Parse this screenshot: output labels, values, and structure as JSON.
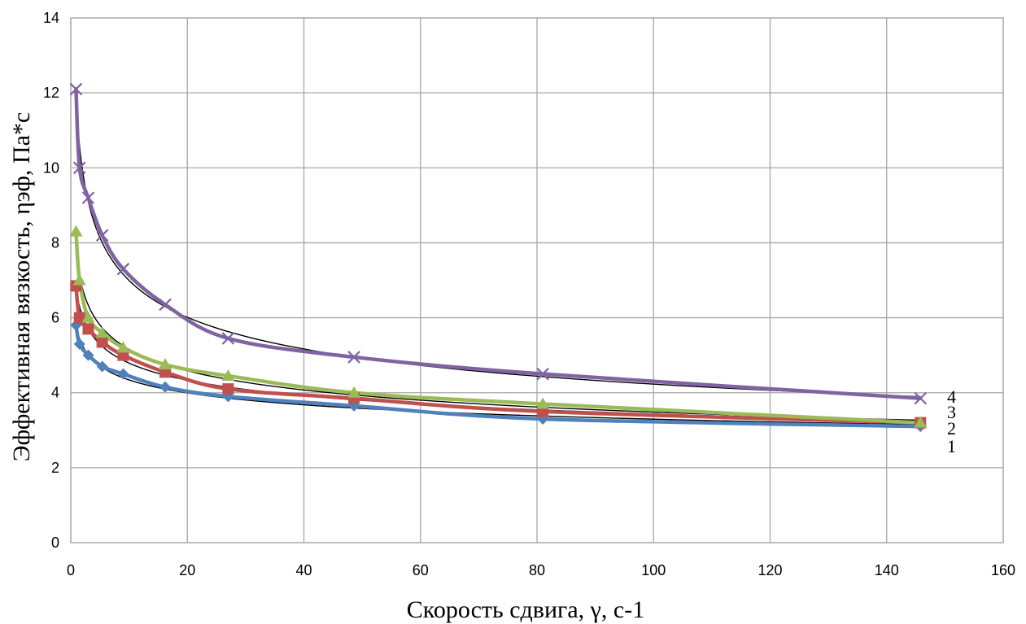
{
  "chart_data": {
    "type": "scatter",
    "xlabel": "Скорость сдвига, γ, с-1",
    "ylabel": "Эффективная вязкость, ηэф, Па*с",
    "xlim": [
      0,
      160
    ],
    "ylim": [
      0,
      14
    ],
    "xticks": [
      0,
      20,
      40,
      60,
      80,
      100,
      120,
      140,
      160
    ],
    "yticks": [
      0,
      2,
      4,
      6,
      8,
      10,
      12,
      14
    ],
    "grid": true,
    "legend": "none",
    "trendline_color": "#000000",
    "series": [
      {
        "label": "1",
        "marker": "diamond",
        "color": "#4F81BD",
        "x": [
          0.9,
          1.5,
          3,
          5.4,
          9,
          16.2,
          27,
          48.6,
          81,
          145.8
        ],
        "y": [
          5.8,
          5.3,
          5.0,
          4.7,
          4.5,
          4.15,
          3.9,
          3.65,
          3.3,
          3.1
        ]
      },
      {
        "label": "2",
        "marker": "square",
        "color": "#C0504D",
        "x": [
          0.9,
          1.5,
          3,
          5.4,
          9,
          16.2,
          27,
          48.6,
          81,
          145.8
        ],
        "y": [
          6.85,
          6.0,
          5.7,
          5.35,
          5.0,
          4.55,
          4.1,
          3.85,
          3.5,
          3.2
        ]
      },
      {
        "label": "3",
        "marker": "triangle",
        "color": "#9BBB59",
        "x": [
          0.9,
          1.5,
          3,
          5.4,
          9,
          16.2,
          27,
          48.6,
          81,
          145.8
        ],
        "y": [
          8.3,
          7.0,
          6.0,
          5.6,
          5.2,
          4.75,
          4.45,
          4.0,
          3.7,
          3.2
        ]
      },
      {
        "label": "4",
        "marker": "x",
        "color": "#8064A2",
        "x": [
          0.9,
          1.5,
          3,
          5.4,
          9,
          16.2,
          27,
          48.6,
          81,
          145.8
        ],
        "y": [
          12.1,
          10.0,
          9.2,
          8.2,
          7.3,
          6.35,
          5.45,
          4.95,
          4.5,
          3.85
        ]
      }
    ]
  }
}
